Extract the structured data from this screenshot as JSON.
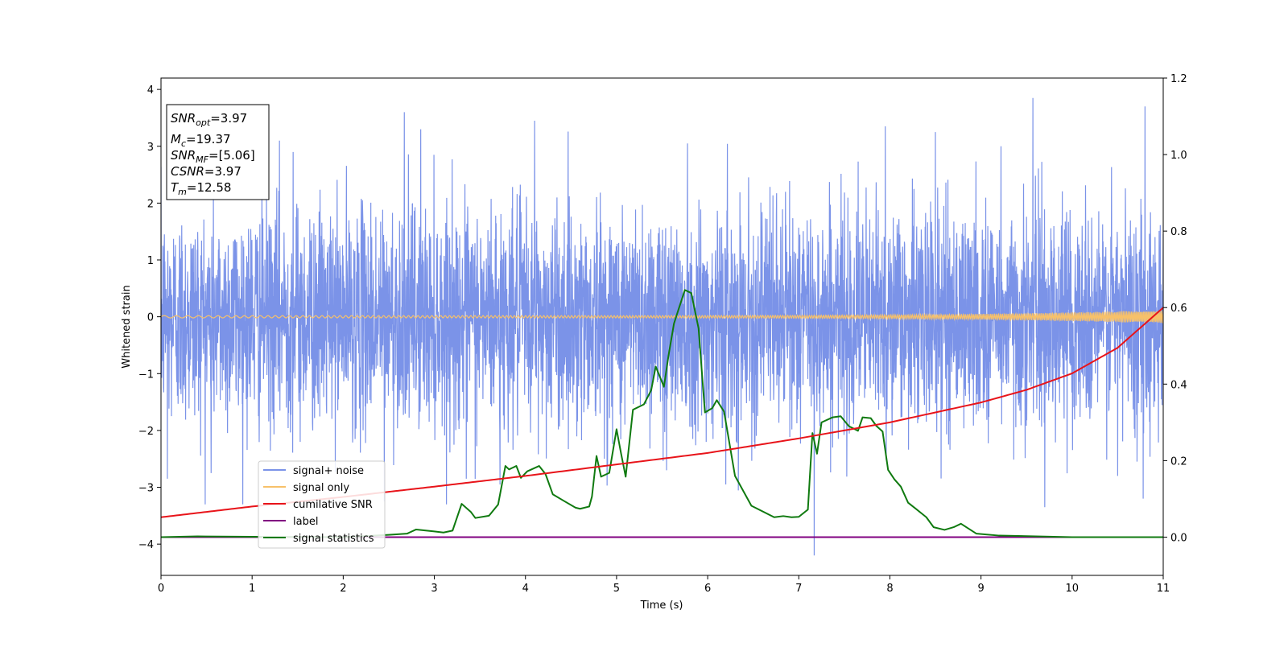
{
  "chart_data": {
    "type": "line",
    "xlabel": "Time (s)",
    "ylabel": "Whitened strain",
    "xlim": [
      0,
      11
    ],
    "ylim": [
      -4.55,
      4.2
    ],
    "y2lim": [
      -0.1,
      1.2
    ],
    "x_ticks": [
      "0",
      "1",
      "2",
      "3",
      "4",
      "5",
      "6",
      "7",
      "8",
      "9",
      "10",
      "11"
    ],
    "y_ticks": [
      "4",
      "3",
      "2",
      "1",
      "0",
      "−1",
      "−2",
      "−3",
      "−4"
    ],
    "y2_ticks": [
      "1.2",
      "1.0",
      "0.8",
      "0.6",
      "0.4",
      "0.2",
      "0.0"
    ],
    "grid": false,
    "legend_position": "lower-left",
    "annotation": {
      "snr_opt": {
        "base": "SNR",
        "sub": "opt",
        "value": "=3.97"
      },
      "mc": {
        "base": "M",
        "sub": "c",
        "value": "=19.37"
      },
      "snr_mf": {
        "base": "SNR",
        "sub": "MF",
        "value": "=[5.06]"
      },
      "csnr": {
        "base": "CSNR",
        "value": "=3.97"
      },
      "tm": {
        "base": "T",
        "sub": "m",
        "value": "=12.58"
      }
    },
    "series": [
      {
        "name": "signal+ noise",
        "axis": "left",
        "color": "#7b93e8",
        "noise_std": 0.95,
        "spikes": [
          [
            0.07,
            -2.85
          ],
          [
            0.55,
            -2.75
          ],
          [
            1.3,
            3.1
          ],
          [
            1.45,
            2.9
          ],
          [
            2.67,
            3.6
          ],
          [
            2.85,
            3.3
          ],
          [
            2.45,
            -3.25
          ],
          [
            3.72,
            -2.95
          ],
          [
            4.1,
            3.45
          ],
          [
            5.55,
            -2.7
          ],
          [
            5.78,
            3.05
          ],
          [
            6.2,
            -2.95
          ],
          [
            7.17,
            -4.2
          ],
          [
            7.95,
            3.35
          ],
          [
            8.5,
            3.25
          ],
          [
            9.22,
            3.0
          ],
          [
            9.57,
            3.85
          ],
          [
            9.7,
            -3.35
          ],
          [
            10.8,
            3.7
          ],
          [
            10.78,
            -3.2
          ],
          [
            3.35,
            -2.85
          ],
          [
            10.5,
            -2.8
          ]
        ]
      },
      {
        "name": "signal only",
        "axis": "left",
        "color": "#f7c16a",
        "start_amp": 0.02,
        "end_amp": 0.12
      },
      {
        "name": "cumilative SNR",
        "axis": "right",
        "color": "#e8141a",
        "x": [
          0,
          1,
          2,
          3,
          4,
          5,
          6,
          7,
          8,
          9,
          9.5,
          10,
          10.5,
          11
        ],
        "y": [
          0.052,
          0.08,
          0.105,
          0.132,
          0.16,
          0.19,
          0.22,
          0.258,
          0.3,
          0.352,
          0.385,
          0.428,
          0.495,
          0.6
        ]
      },
      {
        "name": "label",
        "axis": "right",
        "color": "#800080",
        "x": [
          0,
          11
        ],
        "y": [
          0.0,
          0.0
        ]
      },
      {
        "name": "signal statistics",
        "axis": "right",
        "color": "#107a10",
        "x": [
          0,
          0.4,
          1.0,
          2.0,
          2.5,
          2.7,
          2.8,
          3.0,
          3.1,
          3.2,
          3.3,
          3.4,
          3.45,
          3.6,
          3.7,
          3.78,
          3.82,
          3.9,
          3.95,
          4.02,
          4.15,
          4.22,
          4.3,
          4.42,
          4.55,
          4.6,
          4.7,
          4.73,
          4.78,
          4.83,
          4.92,
          5.0,
          5.05,
          5.1,
          5.18,
          5.3,
          5.38,
          5.43,
          5.52,
          5.57,
          5.63,
          5.68,
          5.75,
          5.82,
          5.9,
          5.97,
          6.05,
          6.1,
          6.18,
          6.3,
          6.48,
          6.73,
          6.83,
          6.92,
          7.0,
          7.1,
          7.15,
          7.2,
          7.25,
          7.37,
          7.46,
          7.55,
          7.65,
          7.7,
          7.79,
          7.85,
          7.92,
          7.98,
          8.05,
          8.12,
          8.2,
          8.28,
          8.4,
          8.48,
          8.6,
          8.7,
          8.78,
          8.95,
          9.2,
          10,
          11
        ],
        "y": [
          0.0,
          0.002,
          0.001,
          0.0,
          0.006,
          0.009,
          0.02,
          0.015,
          0.012,
          0.017,
          0.087,
          0.066,
          0.05,
          0.056,
          0.085,
          0.186,
          0.177,
          0.186,
          0.155,
          0.172,
          0.186,
          0.165,
          0.112,
          0.095,
          0.077,
          0.074,
          0.08,
          0.106,
          0.212,
          0.158,
          0.168,
          0.282,
          0.218,
          0.158,
          0.333,
          0.347,
          0.384,
          0.446,
          0.393,
          0.474,
          0.558,
          0.595,
          0.646,
          0.638,
          0.546,
          0.326,
          0.337,
          0.358,
          0.328,
          0.16,
          0.082,
          0.052,
          0.055,
          0.052,
          0.053,
          0.072,
          0.272,
          0.218,
          0.3,
          0.313,
          0.316,
          0.29,
          0.278,
          0.313,
          0.311,
          0.291,
          0.276,
          0.176,
          0.151,
          0.132,
          0.09,
          0.075,
          0.052,
          0.026,
          0.019,
          0.026,
          0.035,
          0.009,
          0.004,
          0.0,
          0.0
        ]
      }
    ]
  }
}
